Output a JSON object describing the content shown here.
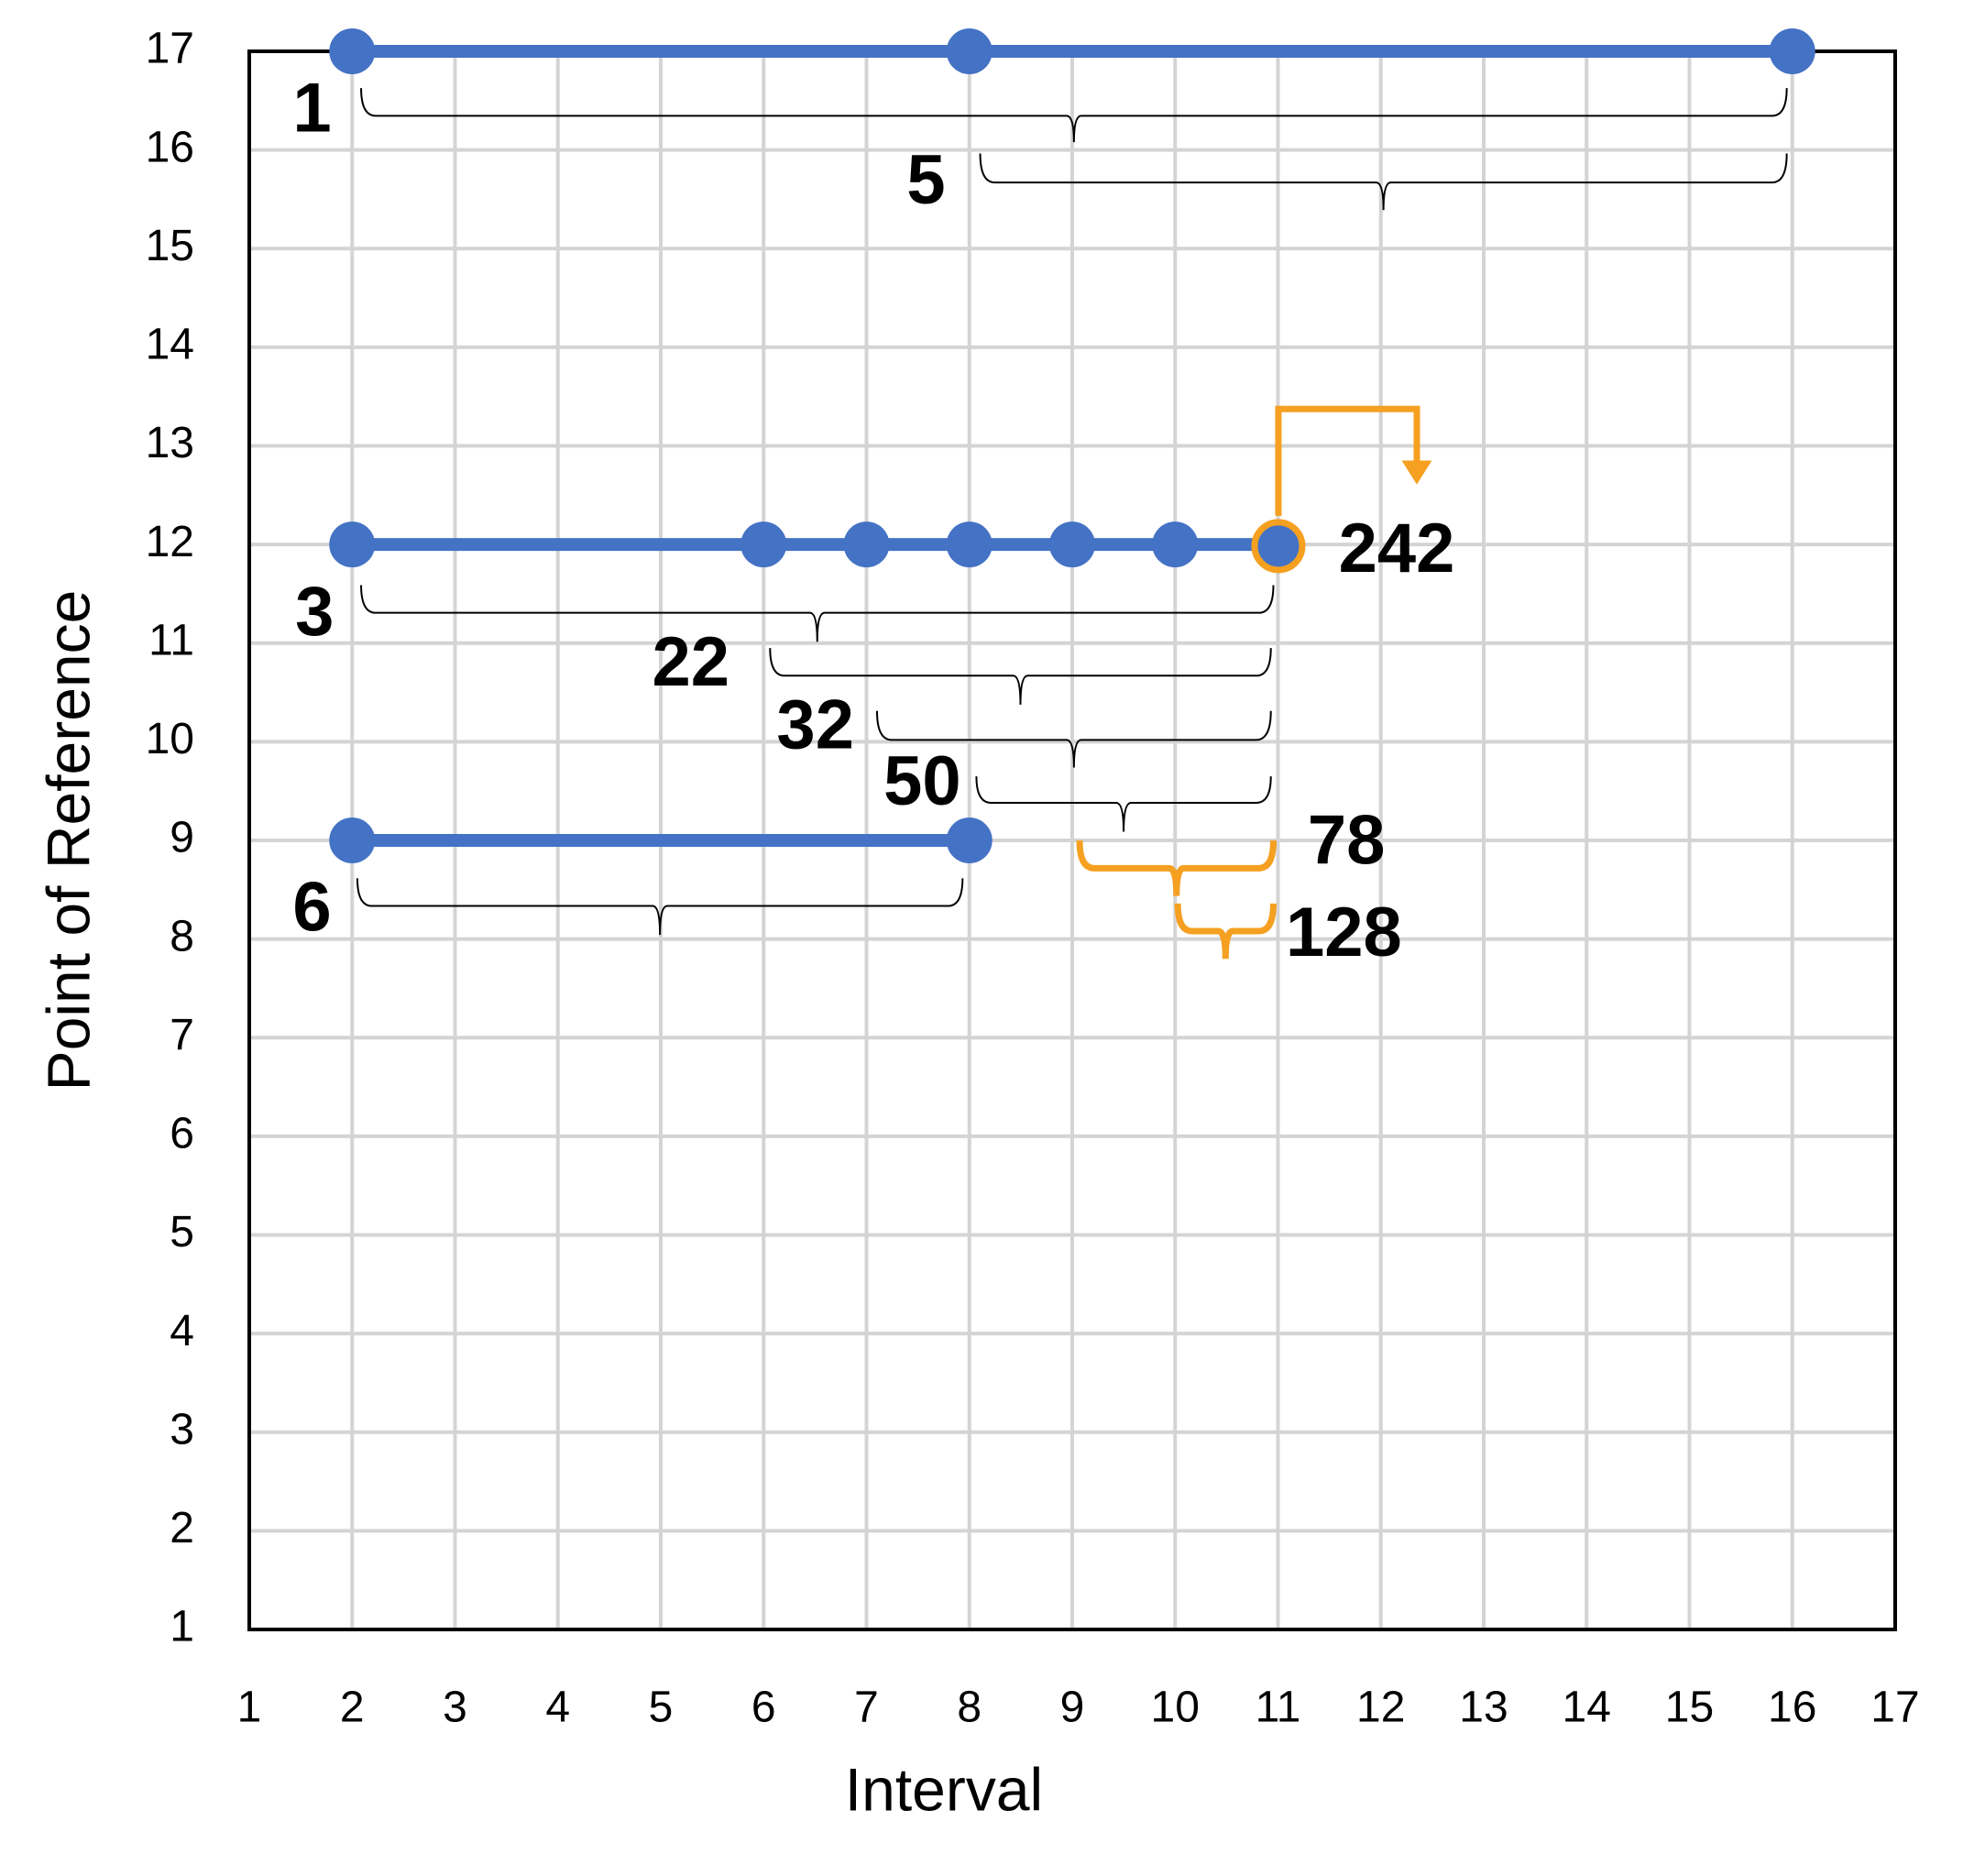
{
  "chart_data": {
    "type": "line",
    "x_label": "Interval",
    "y_label": "Point of Reference",
    "xlim": [
      1,
      17
    ],
    "ylim": [
      1,
      17
    ],
    "xticks": [
      1,
      2,
      3,
      4,
      5,
      6,
      7,
      8,
      9,
      10,
      11,
      12,
      13,
      14,
      15,
      16,
      17
    ],
    "yticks": [
      1,
      2,
      3,
      4,
      5,
      6,
      7,
      8,
      9,
      10,
      11,
      12,
      13,
      14,
      15,
      16,
      17
    ],
    "grid": true,
    "series": [
      {
        "color": "#4472c4",
        "x": [
          2,
          8,
          16
        ],
        "values": [
          17,
          17,
          17
        ]
      },
      {
        "color": "#4472c4",
        "x": [
          2,
          6,
          7,
          8,
          9,
          10,
          11
        ],
        "values": [
          12,
          12,
          12,
          12,
          12,
          12,
          12
        ]
      },
      {
        "color": "#4472c4",
        "x": [
          2,
          8
        ],
        "values": [
          9,
          9
        ]
      }
    ],
    "annotations": [
      "1",
      "5",
      "3",
      "22",
      "32",
      "50",
      "78",
      "128",
      "6",
      "242"
    ],
    "highlight_color": "#f5a021"
  }
}
